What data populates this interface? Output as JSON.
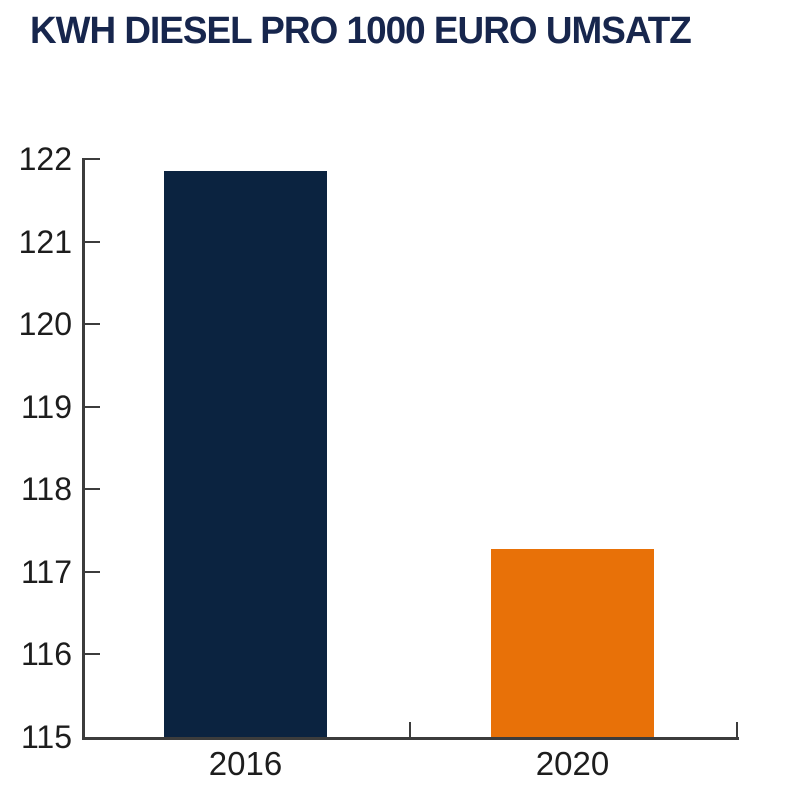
{
  "title": "KWH DIESEL PRO 1000 EURO UMSATZ",
  "colors": {
    "title_text": "#17264d",
    "axis": "#3c3c3c",
    "tick_label_text": "#1d1d1d",
    "background": "#ffffff",
    "bar_2016": "#0b2340",
    "bar_2020": "#e87108"
  },
  "chart_data": {
    "type": "bar",
    "title": "KWH DIESEL PRO 1000 EURO UMSATZ",
    "categories": [
      "2016",
      "2020"
    ],
    "values": [
      121.85,
      117.28
    ],
    "bar_colors": [
      "#0b2340",
      "#e87108"
    ],
    "xlabel": "",
    "ylabel": "",
    "ylim": [
      115,
      122
    ],
    "yticks": [
      115,
      116,
      117,
      118,
      119,
      120,
      121,
      122
    ],
    "grid": false,
    "legend": "none"
  }
}
